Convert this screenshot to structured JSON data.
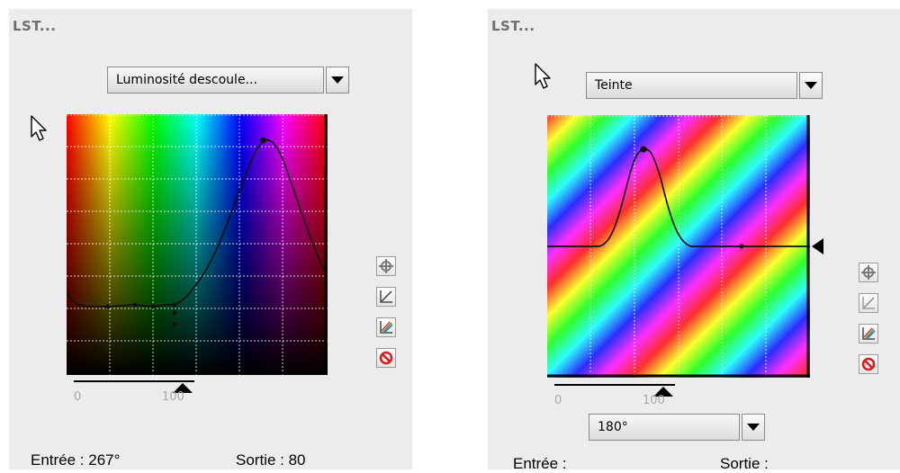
{
  "panels": [
    {
      "title": "LST...",
      "dropdown": {
        "value": "Luminosité descoule..."
      },
      "scale": {
        "min_label": "0",
        "max_label": "100"
      },
      "readout": {
        "input_label": "Entrée : 267°",
        "output_label": "Sortie : 80"
      },
      "buttons": [
        {
          "name": "crosshair-icon"
        },
        {
          "name": "reset-curve-icon"
        },
        {
          "name": "color-curves-icon"
        },
        {
          "name": "cancel-icon"
        }
      ]
    },
    {
      "title": "LST...",
      "dropdown": {
        "value": "Teinte"
      },
      "scale": {
        "min_label": "0",
        "max_label": "100"
      },
      "bottom_dropdown": {
        "value": "180°"
      },
      "readout": {
        "input_label": "Entrée :",
        "output_label": "Sortie :"
      },
      "buttons": [
        {
          "name": "crosshair-icon"
        },
        {
          "name": "reset-curve-icon"
        },
        {
          "name": "color-curves-icon"
        },
        {
          "name": "cancel-icon"
        }
      ]
    }
  ],
  "colors": {
    "panel_bg": "#ececec",
    "curve": "#111111",
    "grid": "#ffffff"
  }
}
